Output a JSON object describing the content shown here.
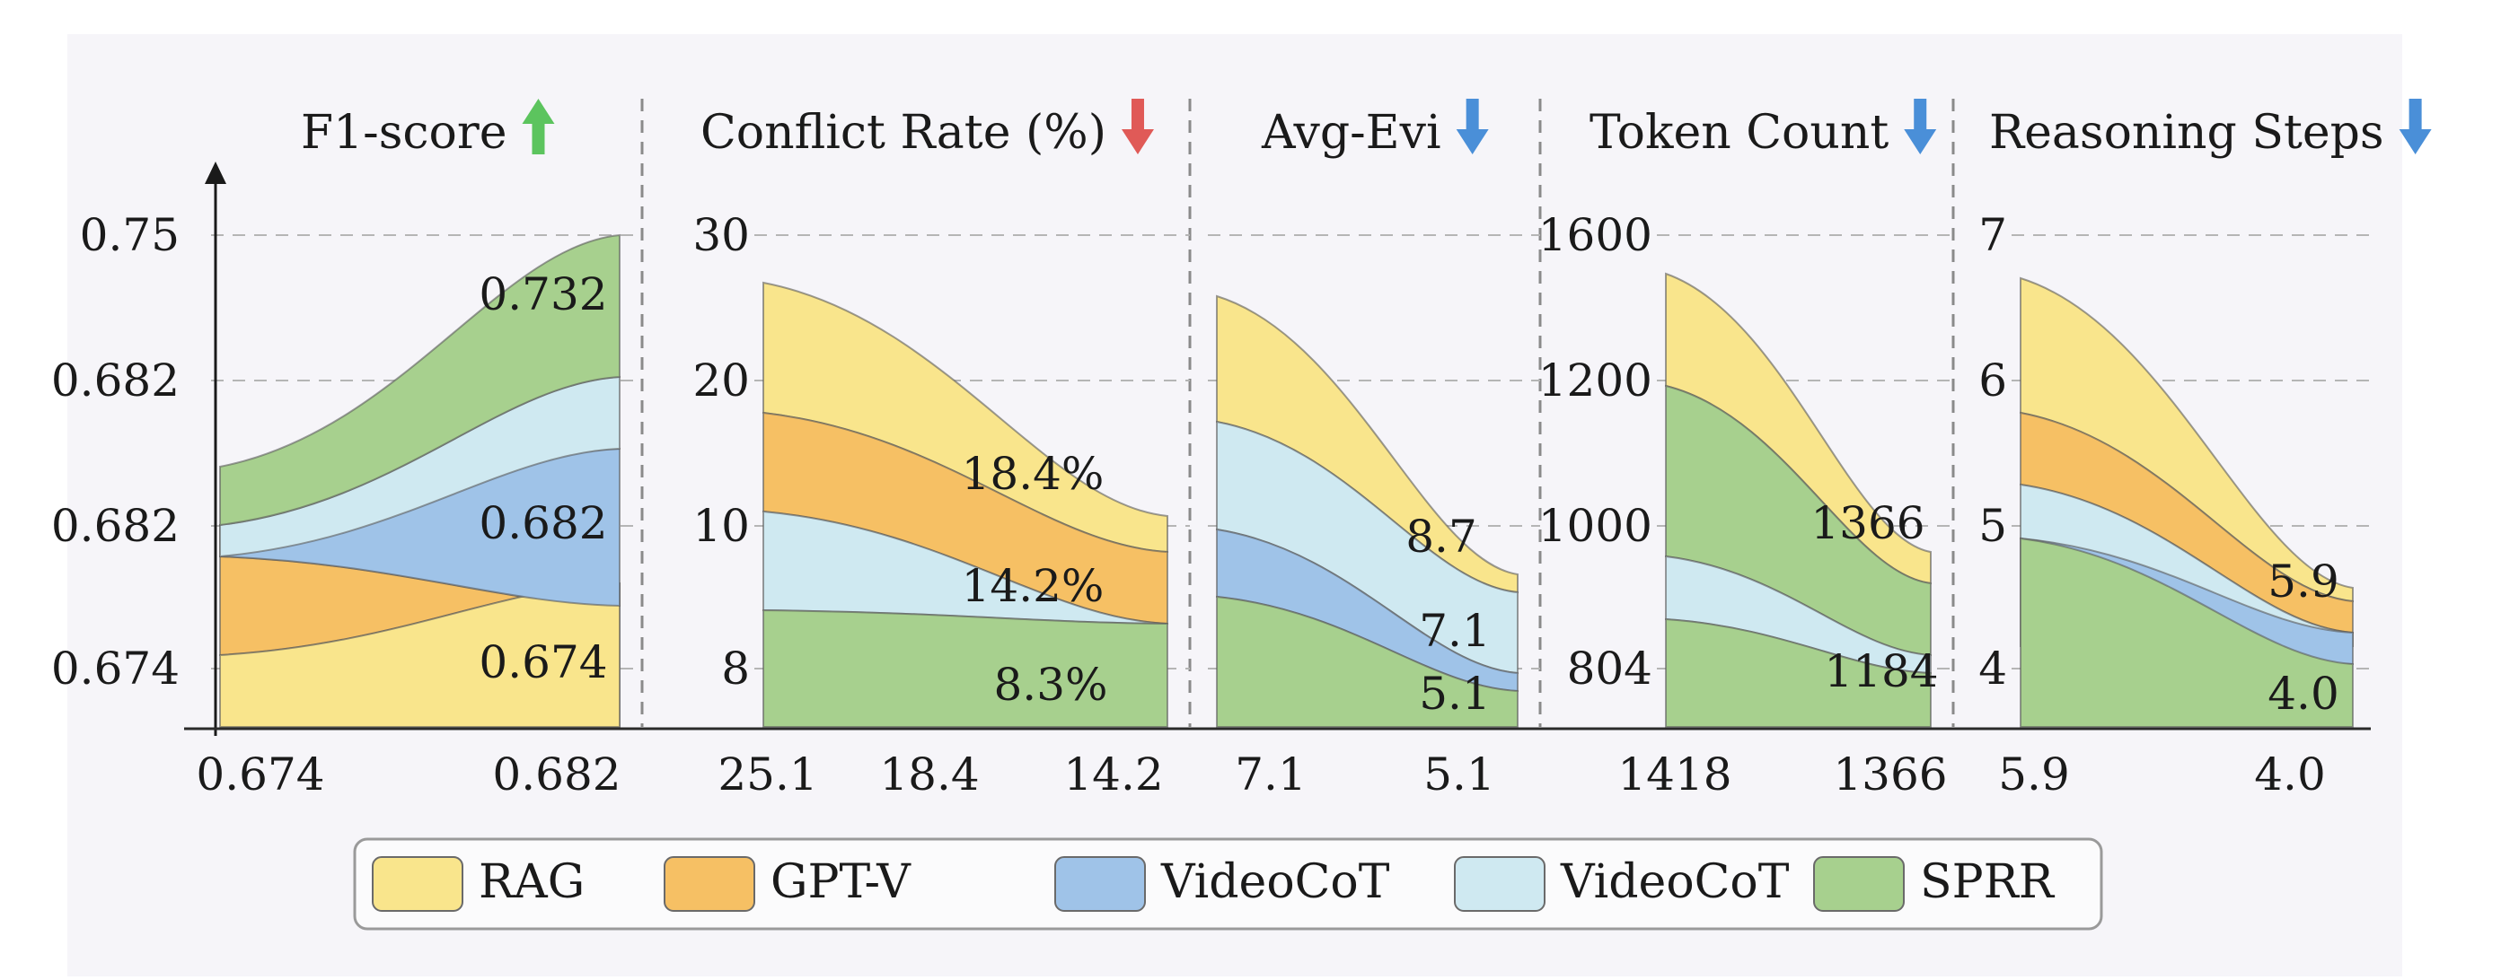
{
  "colors": {
    "RAG": "#f9e58c",
    "GPT-V": "#f6c064",
    "VideoCoT_blue": "#9fc3e8",
    "VideoCoT_light": "#cfe9f1",
    "SPRR": "#a7d08e",
    "panel_bg": "#f6f5f9",
    "arrow_up": "#5cc45e",
    "arrow_down_red": "#e05a57",
    "arrow_down_blue": "#4a8fd8"
  },
  "legend": [
    {
      "label": "RAG",
      "color": "#f9e58c"
    },
    {
      "label": "GPT-V",
      "color": "#f6c064"
    },
    {
      "label": "VideoCoT",
      "color": "#9fc3e8"
    },
    {
      "label": "VideoCoT",
      "color": "#cfe9f1"
    },
    {
      "label": "SPRR",
      "color": "#a7d08e"
    }
  ],
  "chart_data": [
    {
      "type": "area",
      "title": "F1-score",
      "direction": "up",
      "arrow_color": "#5cc45e",
      "y_ticks": [
        "0.75",
        "0.682",
        "0.682",
        "0.674"
      ],
      "x_ticks": [
        "0.674",
        "0.682"
      ],
      "annotations": [
        "0.732",
        "0.682",
        "0.674"
      ],
      "series_order": [
        "RAG",
        "GPT-V",
        "VideoCoT",
        "VideoCoT",
        "SPRR"
      ]
    },
    {
      "type": "area",
      "title": "Conflict Rate (%)",
      "direction": "down",
      "arrow_color": "#e05a57",
      "y_ticks": [
        "30",
        "20",
        "10",
        "8"
      ],
      "x_ticks": [
        "25.1",
        "18.4",
        "14.2"
      ],
      "annotations": [
        "18.4%",
        "14.2%",
        "8.3%"
      ],
      "series_order": [
        "RAG",
        "GPT-V",
        "VideoCoT",
        "SPRR"
      ]
    },
    {
      "type": "area",
      "title": "Avg-Evi",
      "direction": "down",
      "arrow_color": "#4a8fd8",
      "y_ticks": [],
      "x_ticks": [
        "7.1",
        "5.1"
      ],
      "annotations": [
        "8.7",
        "7.1",
        "5.1"
      ],
      "series_order": [
        "RAG",
        "VideoCoT",
        "VideoCoT",
        "SPRR"
      ]
    },
    {
      "type": "area",
      "title": "Token Count",
      "direction": "down",
      "arrow_color": "#4a8fd8",
      "y_ticks": [
        "1600",
        "1200",
        "1000",
        "804"
      ],
      "x_ticks": [
        "1418",
        "1366"
      ],
      "annotations": [
        "1366",
        "1184"
      ],
      "series_order": [
        "RAG",
        "SPRR",
        "VideoCoT",
        "SPRR"
      ]
    },
    {
      "type": "area",
      "title": "Reasoning Steps",
      "direction": "down",
      "arrow_color": "#4a8fd8",
      "y_ticks": [
        "7",
        "6",
        "5",
        "4"
      ],
      "x_ticks": [
        "5.9",
        "4.0"
      ],
      "annotations": [
        "5.9",
        "4.0"
      ],
      "series_order": [
        "RAG",
        "GPT-V",
        "VideoCoT",
        "VideoCoT",
        "SPRR"
      ]
    }
  ]
}
